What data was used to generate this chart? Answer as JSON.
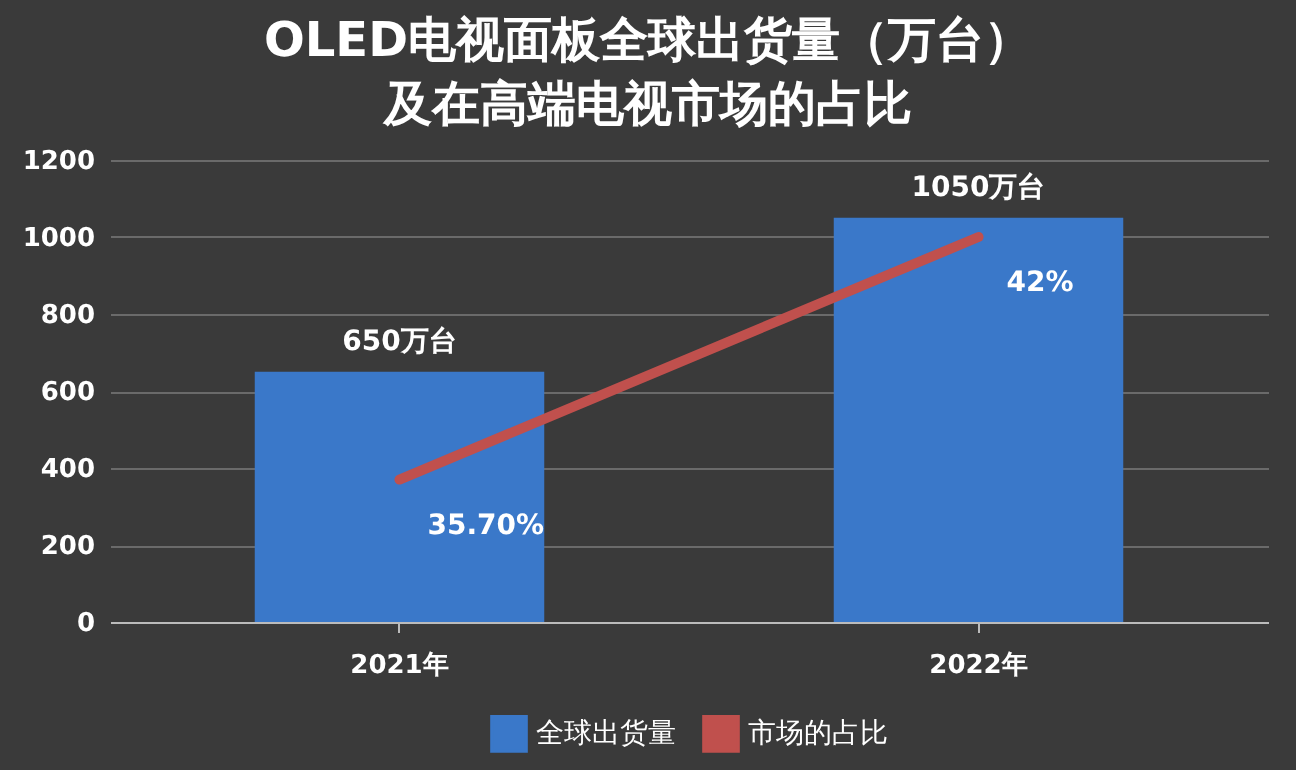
{
  "chart_data": {
    "type": "bar",
    "title": "OLED电视面板全球出货量（万台）及在高端电视市场的占比",
    "categories": [
      "2021年",
      "2022年"
    ],
    "series": [
      {
        "name": "全球出货量",
        "color": "#3a78c9",
        "values": [
          650,
          1050
        ],
        "value_labels": [
          "650万台",
          "1050万台"
        ]
      },
      {
        "name": "市场的占比",
        "type": "line",
        "axis": "y2",
        "color": "#c0504d",
        "values": [
          35.7,
          42
        ],
        "value_labels": [
          "35.70%",
          "42%"
        ]
      }
    ],
    "ylim": [
      0,
      1200
    ],
    "yticks": [
      0,
      200,
      400,
      600,
      800,
      1000,
      1200
    ],
    "y2lim": [
      32,
      44
    ],
    "grid": "y",
    "legend": "bottom",
    "marker": "none",
    "line_style": "solid"
  }
}
